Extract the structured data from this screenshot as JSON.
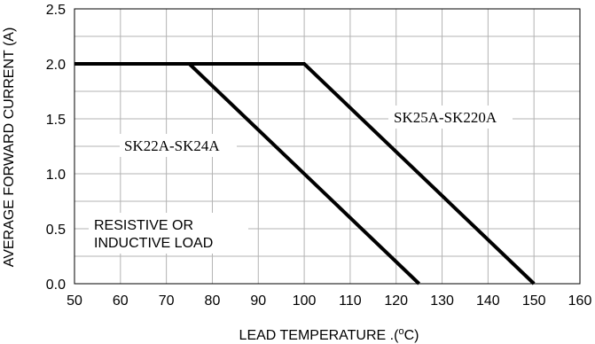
{
  "chart_data": {
    "type": "line",
    "title": "",
    "xlabel": "LEAD TEMPERATURE .(",
    "xlabel_unit": "o",
    "xlabel_suffix": "C)",
    "ylabel": "AVERAGE FORWARD CURRENT (A)",
    "xlim": [
      50,
      160
    ],
    "ylim": [
      0,
      2.5
    ],
    "x_ticks": [
      "50",
      "60",
      "70",
      "80",
      "90",
      "100",
      "110",
      "120",
      "130",
      "140",
      "150",
      "160"
    ],
    "y_ticks": [
      "0.0",
      "0.5",
      "1.0",
      "1.5",
      "2.0",
      "2.5"
    ],
    "grid": true,
    "series": [
      {
        "name": "SK22A-SK24A",
        "points": [
          [
            50,
            2.0
          ],
          [
            75,
            2.0
          ],
          [
            125,
            0.0
          ]
        ]
      },
      {
        "name": "SK25A-SK220A",
        "points": [
          [
            50,
            2.0
          ],
          [
            100,
            2.0
          ],
          [
            150,
            0.0
          ]
        ]
      }
    ],
    "annotations": {
      "note_line1": "RESISTIVE OR",
      "note_line2": "INDUCTIVE LOAD"
    },
    "line_color": "#000000",
    "grid_color": "#b3b3b3"
  }
}
